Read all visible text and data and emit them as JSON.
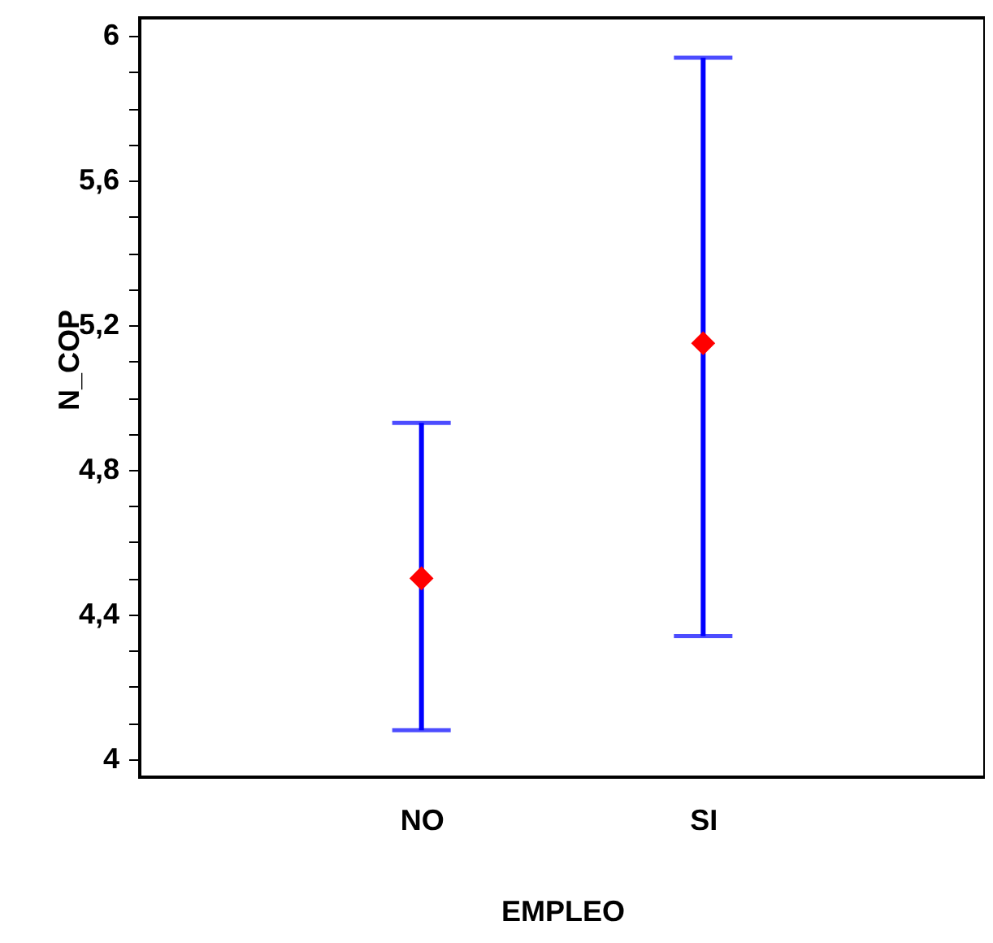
{
  "chart_data": {
    "type": "scatter",
    "xlabel": "EMPLEO",
    "ylabel": "N_COP",
    "categories": [
      "NO",
      "SI"
    ],
    "series": [
      {
        "color": "#ff0000",
        "values": [
          4.5,
          5.15
        ],
        "errors": [
          [
            4.08,
            4.93
          ],
          [
            4.34,
            5.94
          ]
        ]
      }
    ],
    "marker": "diamond",
    "grid": false,
    "ylim": [
      3.95,
      6.05
    ],
    "yticks": [
      {
        "value": 4,
        "label": "4"
      },
      {
        "value": 4.1,
        "label": null
      },
      {
        "value": 4.2,
        "label": null
      },
      {
        "value": 4.3,
        "label": null
      },
      {
        "value": 4.4,
        "label": "4,4"
      },
      {
        "value": 4.5,
        "label": null
      },
      {
        "value": 4.6,
        "label": null
      },
      {
        "value": 4.7,
        "label": null
      },
      {
        "value": 4.8,
        "label": "4,8"
      },
      {
        "value": 4.9,
        "label": null
      },
      {
        "value": 5,
        "label": null
      },
      {
        "value": 5.1,
        "label": null
      },
      {
        "value": 5.2,
        "label": "5,2"
      },
      {
        "value": 5.3,
        "label": null
      },
      {
        "value": 5.4,
        "label": null
      },
      {
        "value": 5.5,
        "label": null
      },
      {
        "value": 5.6,
        "label": "5,6"
      },
      {
        "value": 5.7,
        "label": null
      },
      {
        "value": 5.8,
        "label": null
      },
      {
        "value": 5.9,
        "label": null
      },
      {
        "value": 6,
        "label": "6"
      }
    ]
  }
}
